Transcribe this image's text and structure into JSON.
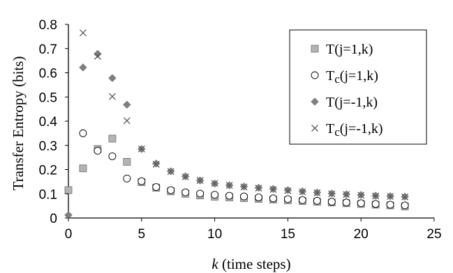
{
  "chart_data": {
    "type": "scatter",
    "xlabel_var": "k",
    "xlabel_rest": " (time steps)",
    "ylabel": "Transfer Entropy (bits)",
    "xlim": [
      0,
      25
    ],
    "ylim": [
      0,
      0.8
    ],
    "xticks": [
      "0",
      "5",
      "10",
      "15",
      "20",
      "25"
    ],
    "yticks": [
      "0",
      "0.1",
      "0.2",
      "0.3",
      "0.4",
      "0.5",
      "0.6",
      "0.7",
      "0.8"
    ],
    "legend_position": "top-right",
    "series": [
      {
        "name_main": "T",
        "name_sub": "",
        "name_rest": "(j=1,k)",
        "marker": "square",
        "color": "#b4b4b4",
        "x": [
          0,
          1,
          2,
          3,
          4,
          5,
          6,
          7,
          8,
          9,
          10,
          11,
          12,
          13,
          14,
          15,
          16,
          17,
          18,
          19,
          20,
          21,
          22,
          23
        ],
        "y": [
          0.115,
          0.205,
          0.285,
          0.328,
          0.232,
          0.148,
          0.125,
          0.11,
          0.1,
          0.093,
          0.088,
          0.085,
          0.082,
          0.079,
          0.076,
          0.073,
          0.07,
          0.067,
          0.064,
          0.061,
          0.058,
          0.055,
          0.052,
          0.048
        ]
      },
      {
        "name_main": "T",
        "name_sub": "c",
        "name_rest": "(j=1,k)",
        "marker": "circle",
        "color": "#ffffff",
        "x": [
          1,
          2,
          3,
          4,
          5,
          6,
          7,
          8,
          9,
          10,
          11,
          12,
          13,
          14,
          15,
          16,
          17,
          18,
          19,
          20,
          21,
          22,
          23
        ],
        "y": [
          0.35,
          0.278,
          0.255,
          0.163,
          0.152,
          0.128,
          0.115,
          0.106,
          0.101,
          0.096,
          0.092,
          0.089,
          0.085,
          0.081,
          0.078,
          0.074,
          0.071,
          0.067,
          0.064,
          0.061,
          0.058,
          0.055,
          0.052
        ]
      },
      {
        "name_main": "T",
        "name_sub": "",
        "name_rest": "(j=-1,k)",
        "marker": "diamond",
        "color": "#7f7f7f",
        "x": [
          0,
          1,
          2,
          3,
          4,
          5,
          6,
          7,
          8,
          9,
          10,
          11,
          12,
          13,
          14,
          15,
          16,
          17,
          18,
          19,
          20,
          21,
          22,
          23
        ],
        "y": [
          0.012,
          0.622,
          0.678,
          0.578,
          0.468,
          0.285,
          0.225,
          0.193,
          0.172,
          0.155,
          0.142,
          0.135,
          0.13,
          0.125,
          0.12,
          0.115,
          0.11,
          0.105,
          0.101,
          0.098,
          0.095,
          0.092,
          0.09,
          0.088
        ]
      },
      {
        "name_main": "T",
        "name_sub": "c",
        "name_rest": "(j=-1,k)",
        "marker": "cross",
        "color": "#595959",
        "x": [
          1,
          2,
          3,
          4,
          5,
          6,
          7,
          8,
          9,
          10,
          11,
          12,
          13,
          14,
          15,
          16,
          17,
          18,
          19,
          20,
          21,
          22,
          23
        ],
        "y": [
          0.765,
          0.668,
          0.502,
          0.402,
          0.285,
          0.222,
          0.192,
          0.17,
          0.155,
          0.143,
          0.135,
          0.128,
          0.123,
          0.118,
          0.113,
          0.108,
          0.104,
          0.1,
          0.097,
          0.094,
          0.091,
          0.089,
          0.087
        ]
      }
    ]
  }
}
